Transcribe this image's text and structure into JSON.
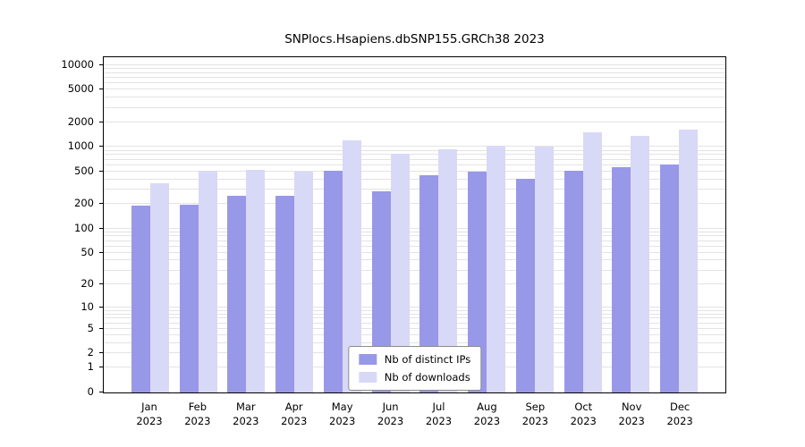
{
  "title": "SNPlocs.Hsapiens.dbSNP155.GRCh38 2023",
  "legend": {
    "items": [
      {
        "label": "Nb of distinct IPs",
        "color": "#9898e8"
      },
      {
        "label": "Nb of downloads",
        "color": "#d8d8f7"
      }
    ]
  },
  "chart_data": {
    "type": "bar",
    "title": "SNPlocs.Hsapiens.dbSNP155.GRCh38 2023",
    "categories": [
      "Jan",
      "Feb",
      "Mar",
      "Apr",
      "May",
      "Jun",
      "Jul",
      "Aug",
      "Sep",
      "Oct",
      "Nov",
      "Dec"
    ],
    "year": "2023",
    "series": [
      {
        "name": "Nb of distinct IPs",
        "color": "#9898e8",
        "values": [
          190,
          195,
          250,
          250,
          510,
          290,
          450,
          500,
          410,
          510,
          560,
          610
        ]
      },
      {
        "name": "Nb of downloads",
        "color": "#d8d8f7",
        "values": [
          360,
          510,
          520,
          500,
          1200,
          820,
          930,
          1030,
          1010,
          1530,
          1350,
          1650
        ]
      }
    ],
    "xlabel": "",
    "ylabel": "",
    "yscale": "log1p",
    "yticks": [
      0,
      1,
      2,
      5,
      10,
      20,
      50,
      100,
      200,
      500,
      1000,
      2000,
      5000,
      10000
    ],
    "ylim": [
      0,
      12500
    ],
    "grid": true,
    "legend_position": "bottom-center"
  }
}
